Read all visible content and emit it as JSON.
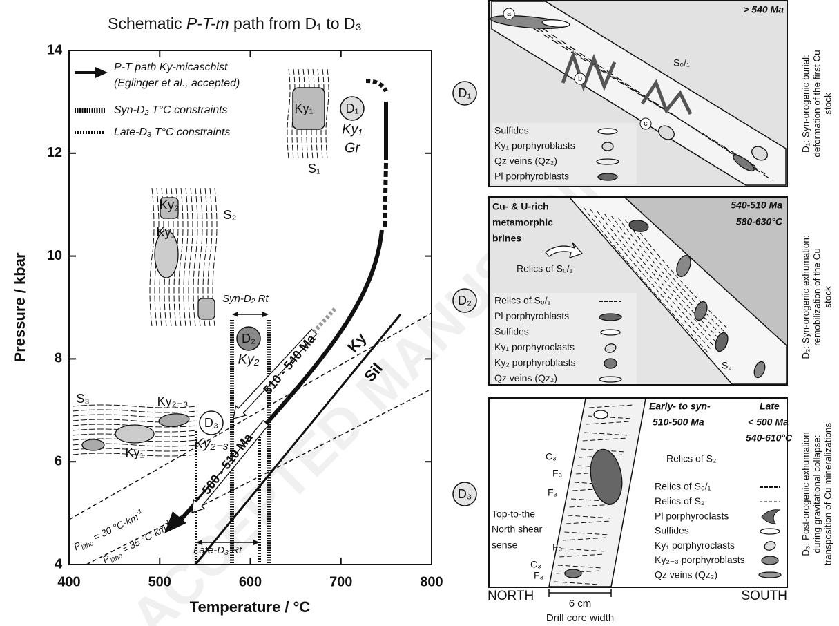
{
  "title": {
    "pre": "Schematic ",
    "italic": "P-T-m",
    "post": " path from D₁ to D₃"
  },
  "plot": {
    "xlabel": "Temperature / °C",
    "ylabel": "Pressure / kbar",
    "xlim": [
      400,
      800
    ],
    "ylim": [
      4,
      14
    ],
    "xticks": [
      400,
      500,
      600,
      700,
      800
    ],
    "yticks": [
      4,
      6,
      8,
      10,
      12,
      14
    ],
    "legend": [
      "P-T path Ky-micaschist",
      "(Eglinger et al., accepted)",
      "Syn-D₂ T°C constraints",
      "Late-D₃ T°C constraints"
    ],
    "stages": [
      {
        "label": "D₁",
        "minerals": [
          "Ky₁",
          "Gr"
        ]
      },
      {
        "label": "D₂",
        "minerals": [
          "Ky₂"
        ]
      },
      {
        "label": "D₃",
        "minerals": [
          "Ky₂₋₃"
        ]
      }
    ],
    "fabrics": [
      "S₁",
      "Ky₁",
      "S₂",
      "Ky₂",
      "Ky₁",
      "S₃",
      "Ky₂₋₃",
      "Ky₁"
    ],
    "rutile": [
      "Syn-D₂ Rt",
      "Late-D₃ Rt"
    ],
    "ages": [
      "510 - 540 Ma",
      "500 - 510 Ma"
    ],
    "reaction": [
      "Ky",
      "Sil"
    ],
    "geotherms": [
      {
        "p": "P",
        "sub": "litho",
        "rest": " = 30 °C·km",
        "sup": "-1"
      },
      {
        "p": "P",
        "sub": "litho",
        "rest": " = 35 °C·km",
        "sup": "-1"
      }
    ]
  },
  "stage_markers": [
    "D₁",
    "D₂",
    "D₃"
  ],
  "panels": [
    {
      "labels": [
        "> 540 Ma",
        "S₀/₁",
        "a",
        "b",
        "c"
      ],
      "legend": [
        "Sulfides",
        "Ky₁ porphyroblasts",
        "Qz veins (Qz₂)",
        "Pl porphyroblasts"
      ],
      "caption": [
        "D₁: Syn-orogenic burial:",
        "deformation of the first Cu",
        "stock"
      ]
    },
    {
      "labels": [
        "540-510 Ma",
        "580-630°C",
        "Cu- & U-rich",
        "metamorphic",
        "brines",
        "Relics of S₀/₁",
        "S₂"
      ],
      "legend": [
        "Relics of S₀/₁",
        "Pl porphyroblasts",
        "Sulfides",
        "Ky₁ porphyroclasts",
        "Ky₂ porphyroblasts",
        "Qz veins (Qz₂)"
      ],
      "caption": [
        "D₂: Syn-orogenic exhumation:",
        "remobilization of the Cu",
        "stock"
      ]
    },
    {
      "labels": [
        "Early- to syn-",
        "510-500 Ma",
        "Late",
        "< 500 Ma",
        "540-610°C",
        "Relics of S₂",
        "Top-to-the",
        "North shear",
        "sense",
        "C₃",
        "F₃",
        "F₃",
        "F₃",
        "C₃",
        "F₃"
      ],
      "legend": [
        "Relics of S₀/₁",
        "Relics of S₂",
        "Pl porphyroclasts",
        "Sulfides",
        "Ky₁ porphyroclasts",
        "Ky₂₋₃ porphyroblasts",
        "Qz veins (Qz₂)"
      ],
      "caption": [
        "D₃: Post-orogenic exhumation",
        "during gravitational collapse:",
        "transposition of Cu mineralizations"
      ],
      "bottom": [
        "NORTH",
        "SOUTH",
        "6 cm",
        "Drill core width"
      ]
    }
  ],
  "watermark": "ACCEPTED MANUSCRIPT"
}
